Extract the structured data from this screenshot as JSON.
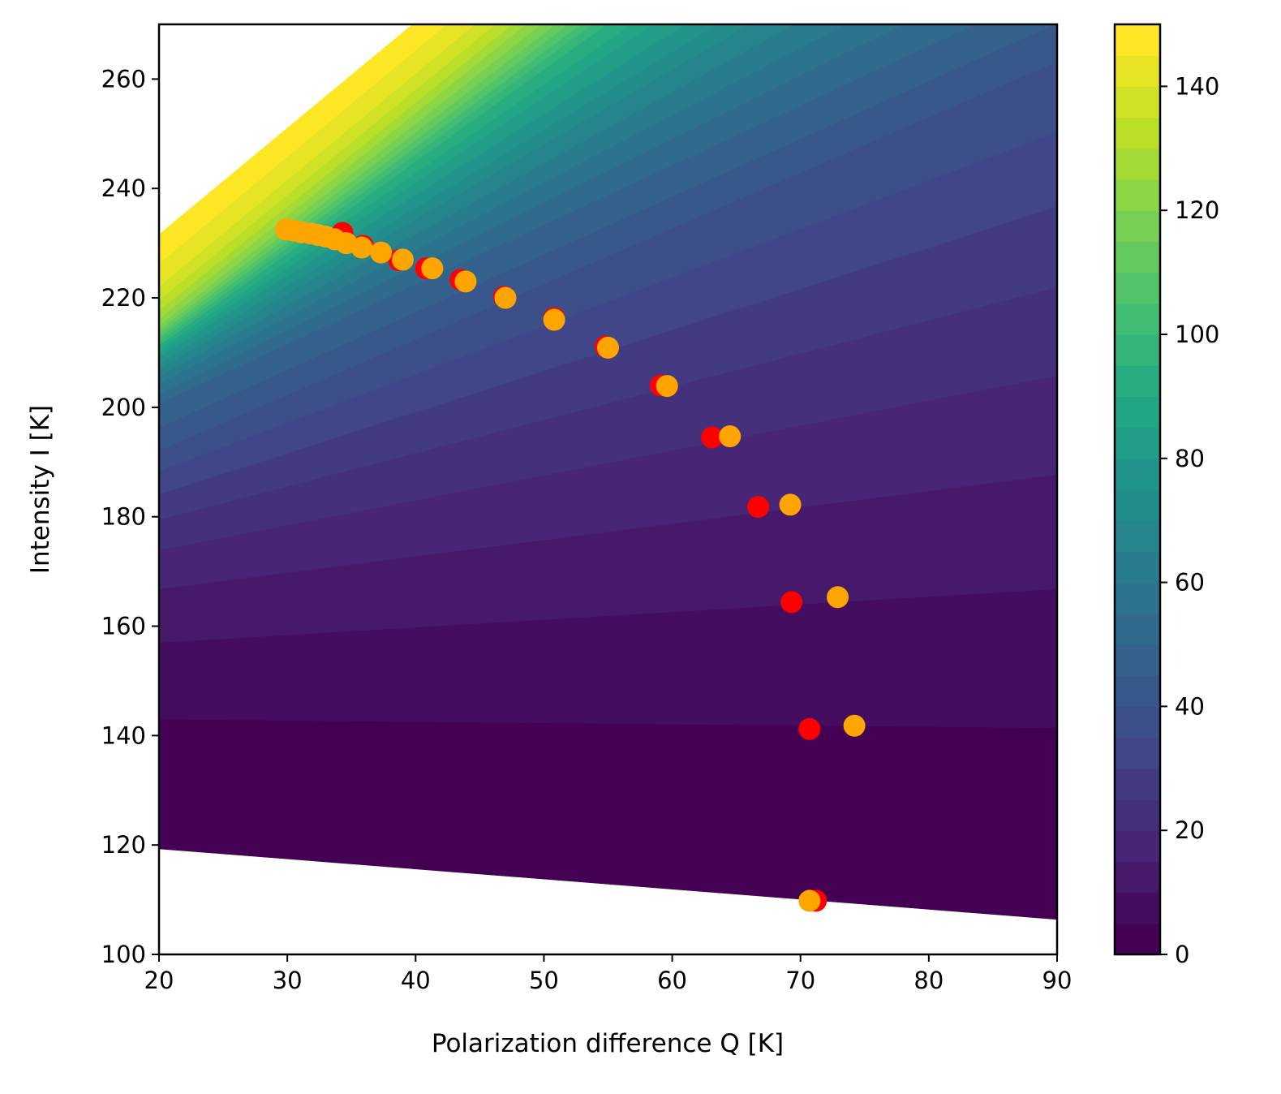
{
  "chart_data": {
    "type": "contour+scatter",
    "xlabel": "Polarization difference Q [K]",
    "ylabel": "Intensity I [K]",
    "xlim": [
      20,
      90
    ],
    "ylim": [
      100,
      270
    ],
    "xticks": [
      "20",
      "30",
      "40",
      "50",
      "60",
      "70",
      "80",
      "90"
    ],
    "yticks": [
      "100",
      "120",
      "140",
      "160",
      "180",
      "200",
      "220",
      "240",
      "260"
    ],
    "grid": false,
    "colormap": "viridis",
    "colorbar": {
      "range": [
        0,
        150
      ],
      "level_step": 5,
      "ticks": [
        "0",
        "20",
        "40",
        "60",
        "80",
        "100",
        "120",
        "140"
      ]
    },
    "contour_levels": [
      {
        "level": 0,
        "I_at_Q20": 119.3,
        "I_at_Q90": 106.4
      },
      {
        "level": 5,
        "I_at_Q20": 143.0,
        "I_at_Q90": 141.4
      },
      {
        "level": 10,
        "I_at_Q20": 157.0,
        "I_at_Q90": 166.8
      },
      {
        "level": 15,
        "I_at_Q20": 166.8,
        "I_at_Q90": 187.7
      },
      {
        "level": 20,
        "I_at_Q20": 173.9,
        "I_at_Q90": 205.8
      },
      {
        "level": 25,
        "I_at_Q20": 179.5,
        "I_at_Q90": 222.0
      },
      {
        "level": 30,
        "I_at_Q20": 184.1,
        "I_at_Q90": 236.7
      },
      {
        "level": 35,
        "I_at_Q20": 188.3,
        "I_at_Q90": 250.3
      },
      {
        "level": 40,
        "I_at_Q20": 192.1,
        "I_at_Q90": 263.2
      },
      {
        "level": 45,
        "I_at_Q20": 196.3,
        "Q_at_I270": 89.8
      },
      {
        "level": 50,
        "I_at_Q20": 200.7,
        "Q_at_I270": 83.6
      },
      {
        "level": 55,
        "I_at_Q20": 202.5,
        "Q_at_I270": 78.0
      },
      {
        "level": 60,
        "I_at_Q20": 204.3,
        "Q_at_I270": 73.5
      },
      {
        "level": 65,
        "I_at_Q20": 205.6,
        "Q_at_I270": 69.5
      },
      {
        "level": 70,
        "I_at_Q20": 207.0,
        "Q_at_I270": 66.0
      },
      {
        "level": 75,
        "I_at_Q20": 208.0,
        "Q_at_I270": 63.5
      },
      {
        "level": 80,
        "I_at_Q20": 209.2,
        "Q_at_I270": 61.0
      },
      {
        "level": 85,
        "I_at_Q20": 209.9,
        "Q_at_I270": 58.5
      },
      {
        "level": 90,
        "I_at_Q20": 210.6,
        "Q_at_I270": 56.8
      },
      {
        "level": 95,
        "I_at_Q20": 211.3,
        "Q_at_I270": 54.9
      },
      {
        "level": 100,
        "I_at_Q20": 212.0,
        "Q_at_I270": 53.8
      },
      {
        "level": 105,
        "I_at_Q20": 212.7,
        "Q_at_I270": 52.9
      },
      {
        "level": 110,
        "I_at_Q20": 213.4,
        "Q_at_I270": 51.9
      },
      {
        "level": 115,
        "I_at_Q20": 214.1,
        "Q_at_I270": 50.9
      },
      {
        "level": 120,
        "I_at_Q20": 214.9,
        "Q_at_I270": 49.8
      },
      {
        "level": 125,
        "I_at_Q20": 216.2,
        "Q_at_I270": 48.6
      },
      {
        "level": 130,
        "I_at_Q20": 217.7,
        "Q_at_I270": 47.5
      },
      {
        "level": 135,
        "I_at_Q20": 219.6,
        "Q_at_I270": 46.2
      },
      {
        "level": 140,
        "I_at_Q20": 222.1,
        "Q_at_I270": 44.6
      },
      {
        "level": 145,
        "I_at_Q20": 226.3,
        "Q_at_I270": 42.4
      },
      {
        "level": 150,
        "I_at_Q20": 231.7,
        "Q_at_I270": 39.7
      }
    ],
    "series": [
      {
        "color": "#ff0000",
        "type": "scatter",
        "points": [
          [
            34.3,
            231.9
          ],
          [
            35.9,
            229.5
          ],
          [
            38.7,
            226.9
          ],
          [
            40.8,
            225.4
          ],
          [
            43.5,
            223.3
          ],
          [
            46.9,
            220.2
          ],
          [
            50.8,
            216.3
          ],
          [
            54.8,
            211.1
          ],
          [
            59.1,
            204.0
          ],
          [
            63.1,
            194.5
          ],
          [
            66.7,
            181.8
          ],
          [
            69.3,
            164.4
          ],
          [
            70.7,
            141.2
          ],
          [
            71.2,
            109.8
          ]
        ]
      },
      {
        "color": "#ffa500",
        "type": "scatter",
        "points": [
          [
            29.9,
            232.5
          ],
          [
            30.5,
            232.3
          ],
          [
            31.1,
            232.0
          ],
          [
            31.8,
            231.8
          ],
          [
            32.4,
            231.5
          ],
          [
            33.0,
            231.2
          ],
          [
            33.7,
            230.7
          ],
          [
            34.6,
            230.0
          ],
          [
            35.8,
            229.2
          ],
          [
            37.3,
            228.3
          ],
          [
            39.0,
            227.0
          ],
          [
            41.3,
            225.4
          ],
          [
            43.9,
            223.0
          ],
          [
            47.0,
            220.0
          ],
          [
            50.8,
            216.0
          ],
          [
            55.0,
            210.9
          ],
          [
            59.6,
            203.9
          ],
          [
            64.5,
            194.7
          ],
          [
            69.2,
            182.2
          ],
          [
            72.9,
            165.3
          ],
          [
            74.2,
            141.8
          ],
          [
            70.7,
            109.8
          ]
        ]
      }
    ]
  }
}
